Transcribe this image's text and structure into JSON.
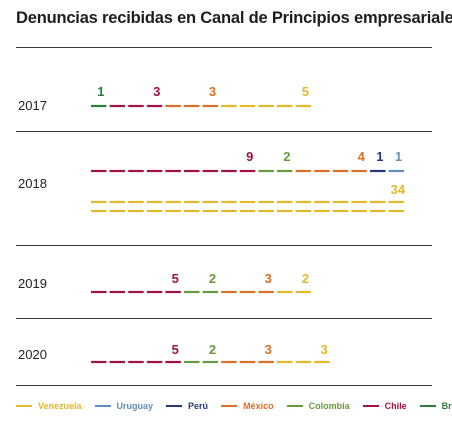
{
  "title": "Denuncias recibidas en Canal de Principios empresariales",
  "colors": {
    "Venezuela": "#e3b82a",
    "Uruguay": "#5f8fb4",
    "Perú": "#283a7a",
    "México": "#d97127",
    "Colombia": "#6a9a3e",
    "Chile": "#a3133f",
    "Brasil": "#2e7d3a"
  },
  "legend": [
    {
      "name": "Venezuela",
      "color": "#e3b82a"
    },
    {
      "name": "Uruguay",
      "color": "#5f8fb4"
    },
    {
      "name": "Perú",
      "color": "#283a7a"
    },
    {
      "name": "México",
      "color": "#d97127"
    },
    {
      "name": "Colombia",
      "color": "#6a9a3e"
    },
    {
      "name": "Chile",
      "color": "#a3133f"
    },
    {
      "name": "Brasil",
      "color": "#2e7d3a"
    }
  ],
  "chart_data": {
    "type": "bar",
    "title": "Denuncias recibidas en Canal de Principios empresariales",
    "categories": [
      "2017",
      "2018",
      "2019",
      "2020"
    ],
    "series": [
      {
        "name": "Brasil",
        "values": [
          1,
          0,
          0,
          0
        ]
      },
      {
        "name": "Chile",
        "values": [
          3,
          9,
          5,
          5
        ]
      },
      {
        "name": "Colombia",
        "values": [
          0,
          2,
          2,
          2
        ]
      },
      {
        "name": "México",
        "values": [
          3,
          4,
          3,
          3
        ]
      },
      {
        "name": "Perú",
        "values": [
          0,
          1,
          0,
          0
        ]
      },
      {
        "name": "Uruguay",
        "values": [
          0,
          1,
          0,
          0
        ]
      },
      {
        "name": "Venezuela",
        "values": [
          5,
          34,
          2,
          3
        ]
      }
    ],
    "rows": [
      {
        "year": "2017",
        "segments": [
          {
            "country": "Brasil",
            "value": 1
          },
          {
            "country": "Chile",
            "value": 3
          },
          {
            "country": "México",
            "value": 3
          },
          {
            "country": "Venezuela",
            "value": 5
          }
        ]
      },
      {
        "year": "2018",
        "segments": [
          {
            "country": "Chile",
            "value": 9
          },
          {
            "country": "Colombia",
            "value": 2
          },
          {
            "country": "México",
            "value": 4
          },
          {
            "country": "Perú",
            "value": 1
          },
          {
            "country": "Uruguay",
            "value": 1
          },
          {
            "country": "Venezuela",
            "value": 34
          }
        ]
      },
      {
        "year": "2019",
        "segments": [
          {
            "country": "Chile",
            "value": 5
          },
          {
            "country": "Colombia",
            "value": 2
          },
          {
            "country": "México",
            "value": 3
          },
          {
            "country": "Venezuela",
            "value": 2
          }
        ]
      },
      {
        "year": "2020",
        "segments": [
          {
            "country": "Chile",
            "value": 5
          },
          {
            "country": "Colombia",
            "value": 2
          },
          {
            "country": "México",
            "value": 3
          },
          {
            "country": "Venezuela",
            "value": 3
          }
        ]
      }
    ],
    "legend_position": "bottom",
    "grid": false
  }
}
